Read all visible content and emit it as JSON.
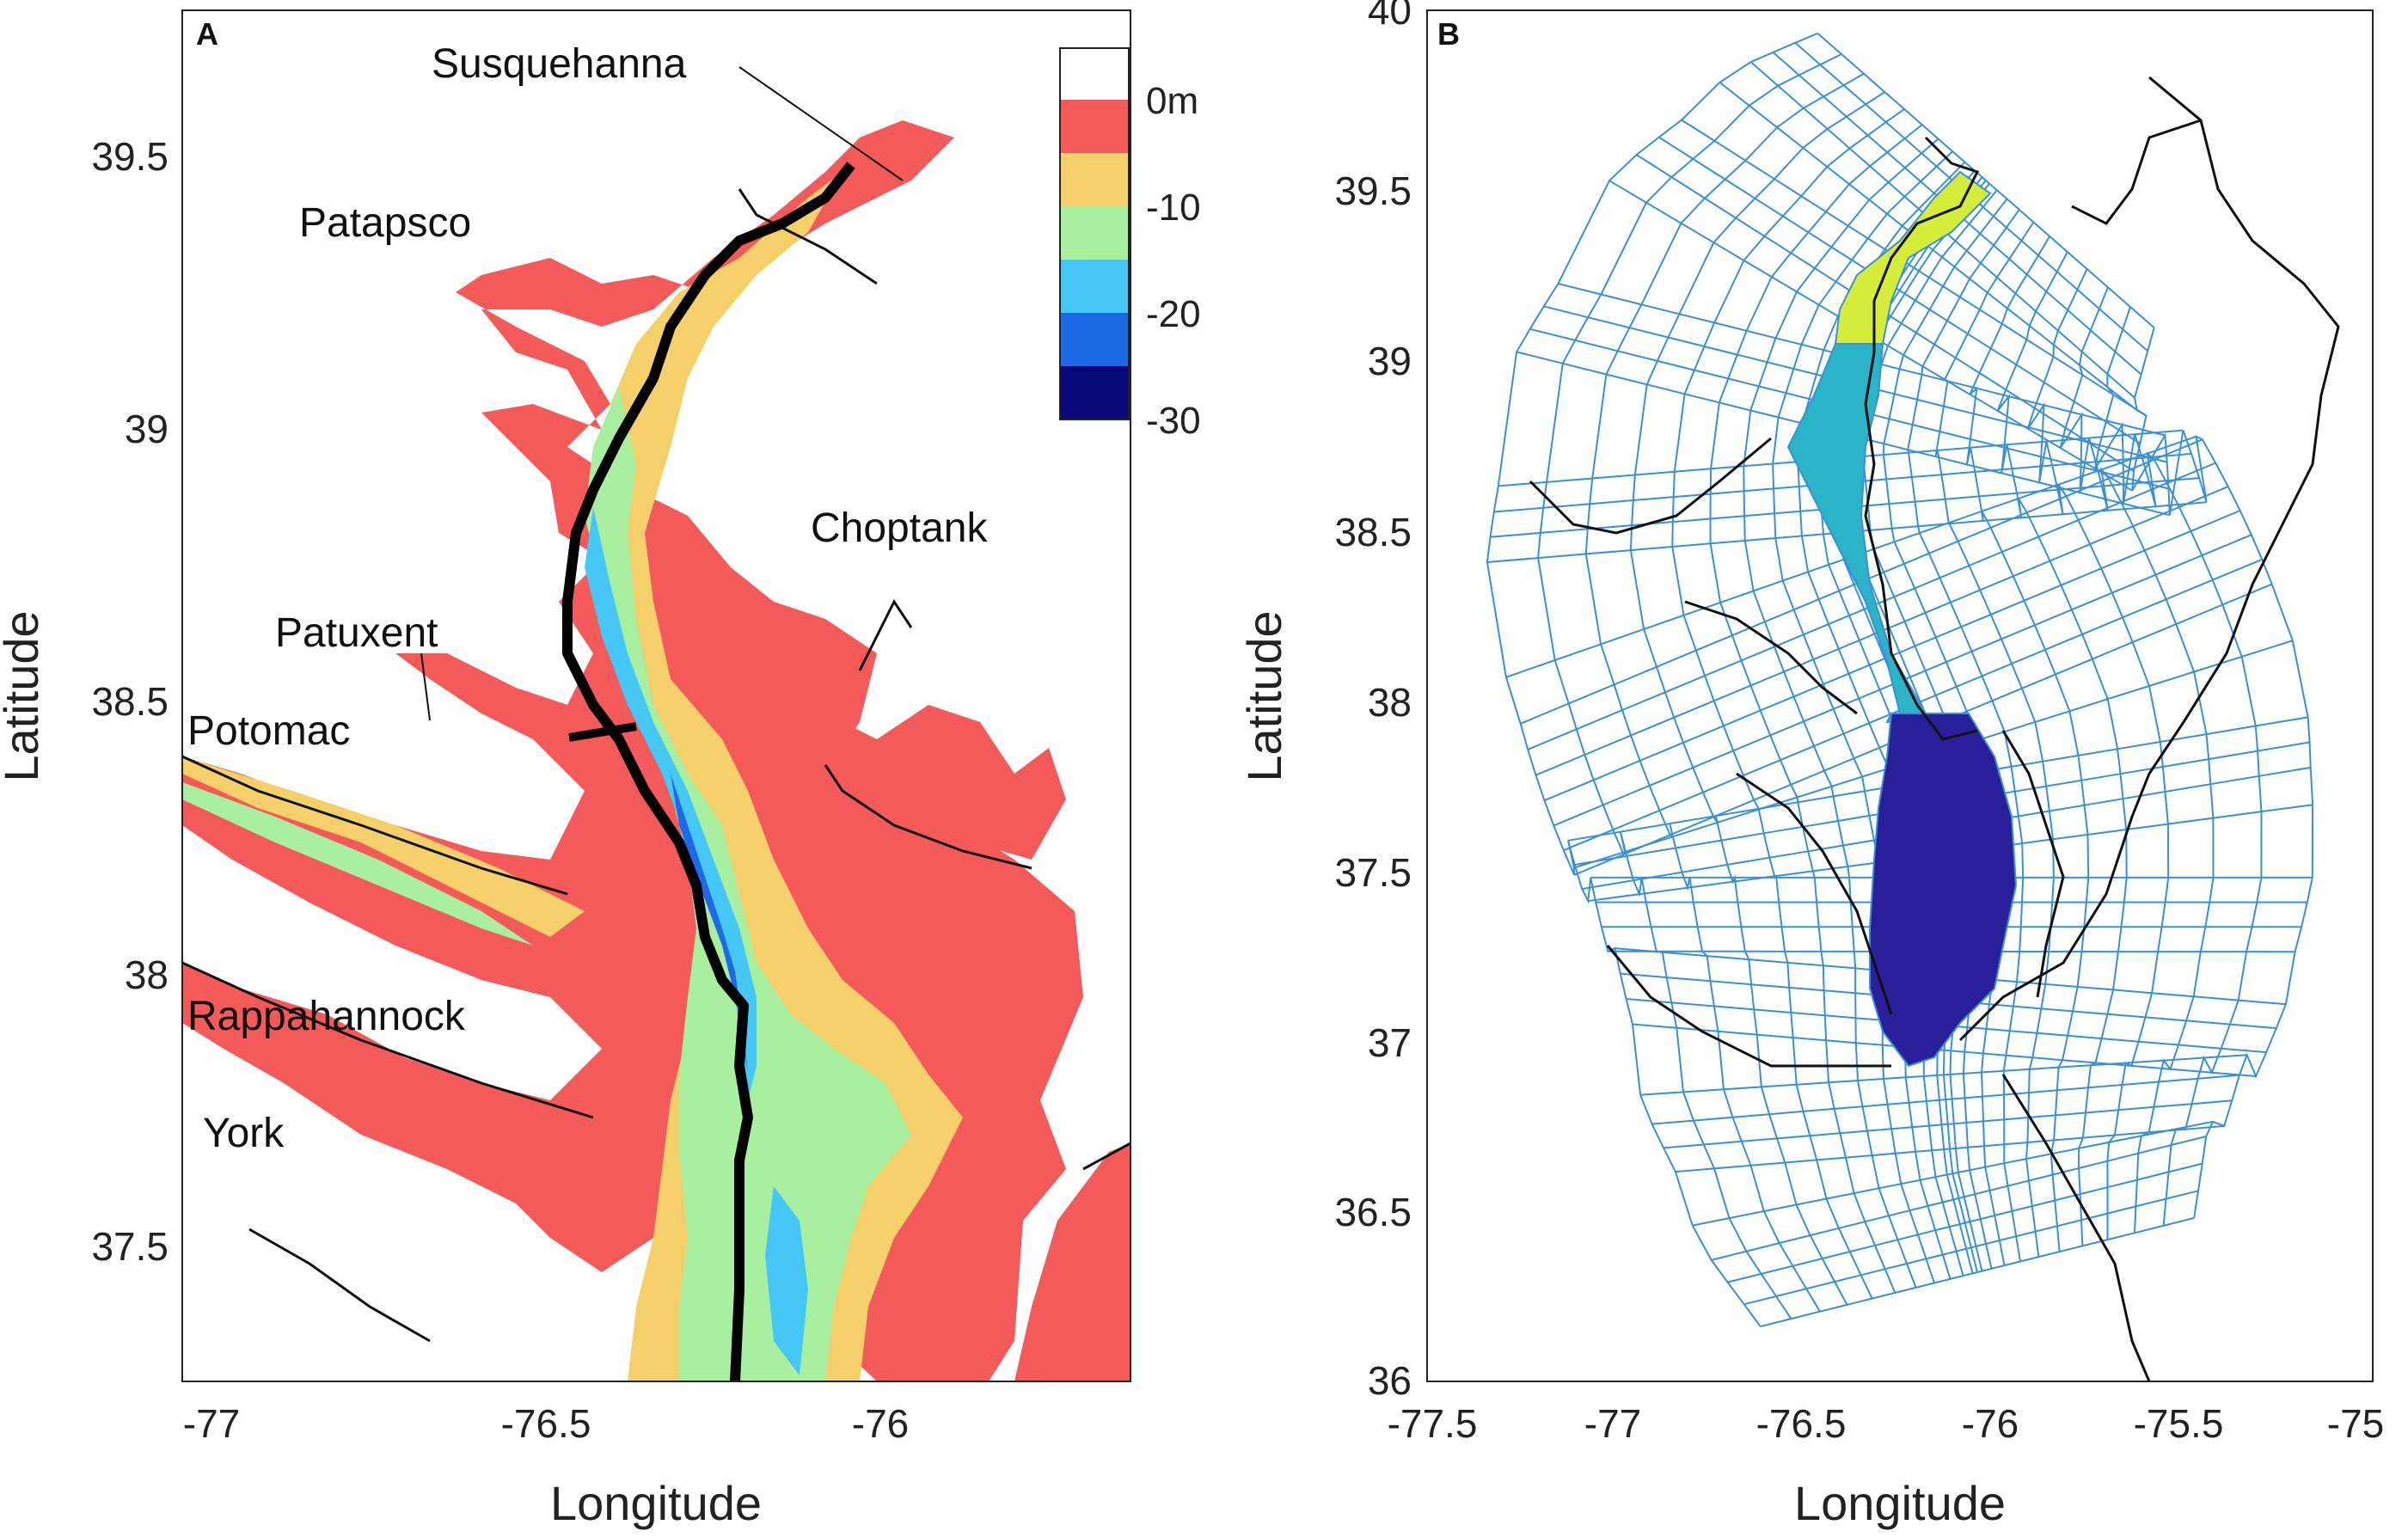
{
  "panel_a": {
    "label": "A",
    "xlabel": "Longitude",
    "ylabel": "Latitude",
    "xticks": [
      "-77",
      "-76.5",
      "-76"
    ],
    "yticks": [
      "39.5",
      "39",
      "38.5",
      "38",
      "37.5"
    ],
    "rivers": [
      "Susquehanna",
      "Patapsco",
      "Choptank",
      "Patuxent",
      "Potomac",
      "Rappahannock",
      "York"
    ],
    "colorbar": {
      "ticks": [
        "0m",
        "-10",
        "-20",
        "-30"
      ],
      "levels": [
        {
          "range": "above 0m",
          "color": "#ffffff"
        },
        {
          "range": "0 to -5",
          "color": "#f45a5a"
        },
        {
          "range": "-5 to -10",
          "color": "#f5d06a"
        },
        {
          "range": "-10 to -15",
          "color": "#a8f0a0"
        },
        {
          "range": "-15 to -20",
          "color": "#45c8f5"
        },
        {
          "range": "-20 to -25",
          "color": "#1e6ae6"
        },
        {
          "range": "-25 to -30",
          "color": "#08087a"
        }
      ]
    }
  },
  "panel_b": {
    "label": "B",
    "xlabel": "Longitude",
    "ylabel": "Latitude",
    "xticks": [
      "-77.5",
      "-77",
      "-76.5",
      "-76",
      "-75.5",
      "-75"
    ],
    "yticks": [
      "40",
      "39.5",
      "39",
      "38.5",
      "38",
      "37.5",
      "37",
      "36.5",
      "36"
    ],
    "grid_color": "#3a8fd9",
    "highlight_colors": [
      "#d6ec3a",
      "#2bb3c8",
      "#2a1f9a"
    ]
  }
}
